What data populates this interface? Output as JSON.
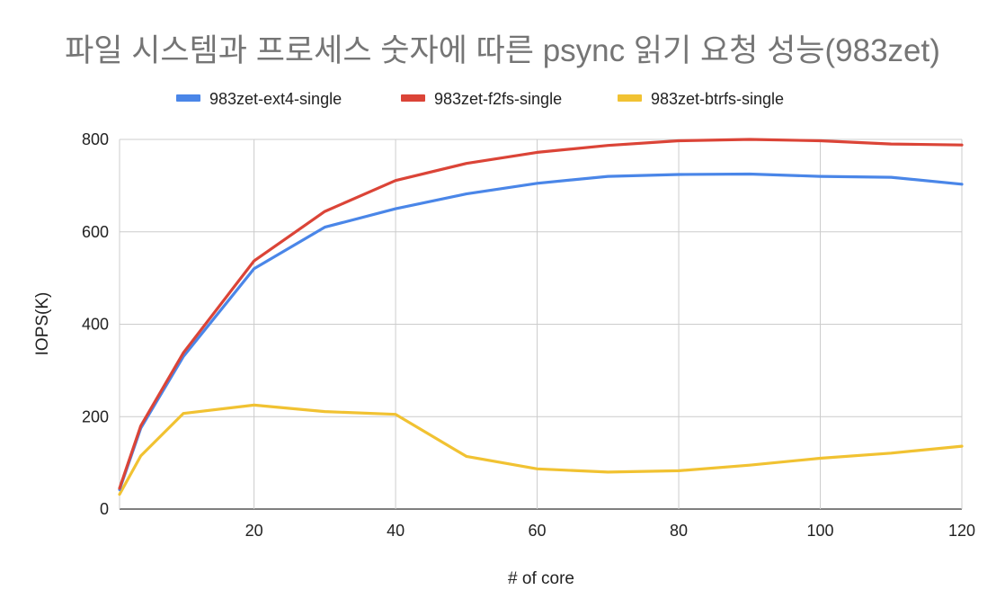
{
  "chart_data": {
    "type": "line",
    "title": "파일 시스템과 프로세스 숫자에 따른 psync 읽기 요청 성능(983zet)",
    "xlabel": "# of core",
    "ylabel": "IOPS(K)",
    "xlim": [
      1,
      120
    ],
    "ylim": [
      0,
      800
    ],
    "x_ticks": [
      20,
      40,
      60,
      80,
      100,
      120
    ],
    "y_ticks": [
      0,
      200,
      400,
      600,
      800
    ],
    "x_tick_labels": [
      "20",
      "40",
      "60",
      "80",
      "100",
      "120"
    ],
    "y_tick_labels": [
      "0",
      "200",
      "400",
      "600",
      "800"
    ],
    "grid": true,
    "legend_position": "top",
    "series": [
      {
        "name": "983zet-ext4-single",
        "color": "#4a86e8",
        "x": [
          1,
          4,
          10,
          20,
          30,
          40,
          50,
          60,
          70,
          80,
          90,
          100,
          110,
          120
        ],
        "values": [
          42,
          175,
          330,
          520,
          610,
          650,
          682,
          705,
          720,
          724,
          725,
          720,
          718,
          703
        ]
      },
      {
        "name": "983zet-f2fs-single",
        "color": "#db4437",
        "x": [
          1,
          4,
          10,
          20,
          30,
          40,
          50,
          60,
          70,
          80,
          90,
          100,
          110,
          120
        ],
        "values": [
          45,
          180,
          338,
          537,
          644,
          711,
          748,
          772,
          787,
          797,
          800,
          797,
          790,
          788
        ]
      },
      {
        "name": "983zet-btrfs-single",
        "color": "#f1c232",
        "x": [
          1,
          4,
          10,
          20,
          30,
          40,
          50,
          60,
          70,
          80,
          90,
          100,
          110,
          120
        ],
        "values": [
          32,
          115,
          207,
          225,
          211,
          205,
          114,
          87,
          80,
          83,
          95,
          110,
          121,
          136
        ]
      }
    ]
  }
}
